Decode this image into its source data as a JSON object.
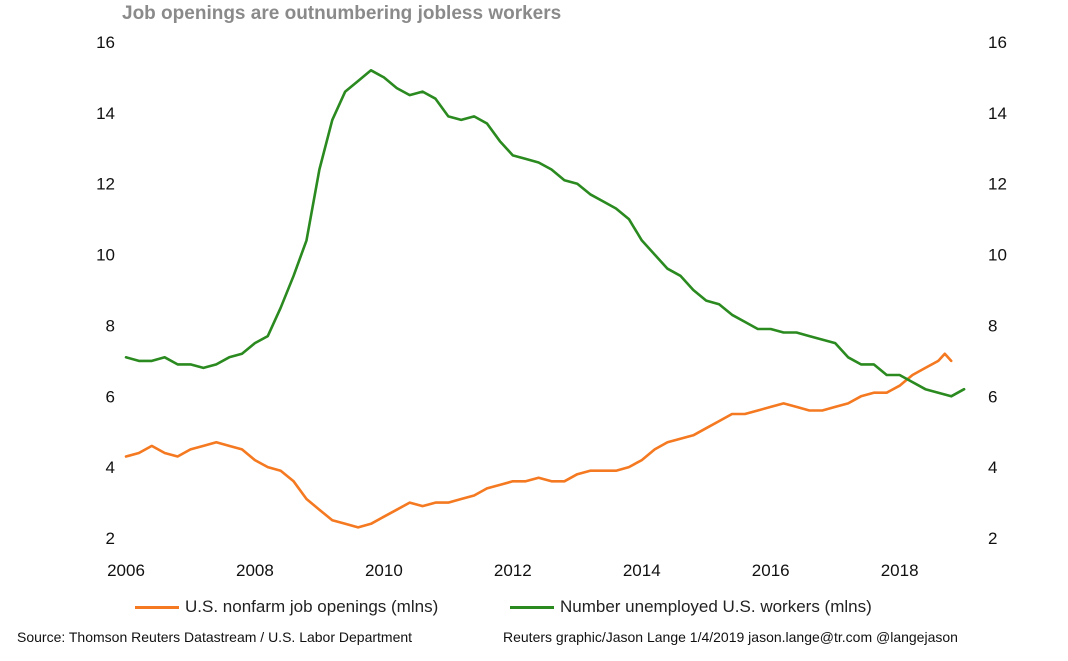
{
  "chart_data": {
    "type": "line",
    "title": "Job openings are outnumbering jobless workers",
    "xlabel": "",
    "ylabel": "",
    "x_ticks": [
      "2006",
      "2008",
      "2010",
      "2012",
      "2014",
      "2016",
      "2018"
    ],
    "y_ticks_left": [
      "2",
      "4",
      "6",
      "8",
      "10",
      "12",
      "14",
      "16"
    ],
    "y_ticks_right": [
      "2",
      "4",
      "6",
      "8",
      "10",
      "12",
      "14",
      "16"
    ],
    "xlim": [
      2006,
      2019.2
    ],
    "ylim": [
      2,
      16
    ],
    "grid": false,
    "legend_position": "bottom",
    "series": [
      {
        "name": "U.S. nonfarm job openings (mlns)",
        "color": "#f47920",
        "points": [
          [
            2006.0,
            4.3
          ],
          [
            2006.2,
            4.4
          ],
          [
            2006.4,
            4.6
          ],
          [
            2006.6,
            4.4
          ],
          [
            2006.8,
            4.3
          ],
          [
            2007.0,
            4.5
          ],
          [
            2007.2,
            4.6
          ],
          [
            2007.4,
            4.7
          ],
          [
            2007.6,
            4.6
          ],
          [
            2007.8,
            4.5
          ],
          [
            2008.0,
            4.2
          ],
          [
            2008.2,
            4.0
          ],
          [
            2008.4,
            3.9
          ],
          [
            2008.6,
            3.6
          ],
          [
            2008.8,
            3.1
          ],
          [
            2009.0,
            2.8
          ],
          [
            2009.2,
            2.5
          ],
          [
            2009.4,
            2.4
          ],
          [
            2009.6,
            2.3
          ],
          [
            2009.8,
            2.4
          ],
          [
            2010.0,
            2.6
          ],
          [
            2010.2,
            2.8
          ],
          [
            2010.4,
            3.0
          ],
          [
            2010.6,
            2.9
          ],
          [
            2010.8,
            3.0
          ],
          [
            2011.0,
            3.0
          ],
          [
            2011.2,
            3.1
          ],
          [
            2011.4,
            3.2
          ],
          [
            2011.6,
            3.4
          ],
          [
            2011.8,
            3.5
          ],
          [
            2012.0,
            3.6
          ],
          [
            2012.2,
            3.6
          ],
          [
            2012.4,
            3.7
          ],
          [
            2012.6,
            3.6
          ],
          [
            2012.8,
            3.6
          ],
          [
            2013.0,
            3.8
          ],
          [
            2013.2,
            3.9
          ],
          [
            2013.4,
            3.9
          ],
          [
            2013.6,
            3.9
          ],
          [
            2013.8,
            4.0
          ],
          [
            2014.0,
            4.2
          ],
          [
            2014.2,
            4.5
          ],
          [
            2014.4,
            4.7
          ],
          [
            2014.6,
            4.8
          ],
          [
            2014.8,
            4.9
          ],
          [
            2015.0,
            5.1
          ],
          [
            2015.2,
            5.3
          ],
          [
            2015.4,
            5.5
          ],
          [
            2015.6,
            5.5
          ],
          [
            2015.8,
            5.6
          ],
          [
            2016.0,
            5.7
          ],
          [
            2016.2,
            5.8
          ],
          [
            2016.4,
            5.7
          ],
          [
            2016.6,
            5.6
          ],
          [
            2016.8,
            5.6
          ],
          [
            2017.0,
            5.7
          ],
          [
            2017.2,
            5.8
          ],
          [
            2017.4,
            6.0
          ],
          [
            2017.6,
            6.1
          ],
          [
            2017.8,
            6.1
          ],
          [
            2018.0,
            6.3
          ],
          [
            2018.2,
            6.6
          ],
          [
            2018.4,
            6.8
          ],
          [
            2018.6,
            7.0
          ],
          [
            2018.7,
            7.2
          ],
          [
            2018.8,
            7.0
          ]
        ]
      },
      {
        "name": "Number unemployed U.S. workers (mlns)",
        "color": "#2a8a1f",
        "points": [
          [
            2006.0,
            7.1
          ],
          [
            2006.2,
            7.0
          ],
          [
            2006.4,
            7.0
          ],
          [
            2006.6,
            7.1
          ],
          [
            2006.8,
            6.9
          ],
          [
            2007.0,
            6.9
          ],
          [
            2007.2,
            6.8
          ],
          [
            2007.4,
            6.9
          ],
          [
            2007.6,
            7.1
          ],
          [
            2007.8,
            7.2
          ],
          [
            2008.0,
            7.5
          ],
          [
            2008.2,
            7.7
          ],
          [
            2008.4,
            8.5
          ],
          [
            2008.6,
            9.4
          ],
          [
            2008.8,
            10.4
          ],
          [
            2009.0,
            12.4
          ],
          [
            2009.2,
            13.8
          ],
          [
            2009.4,
            14.6
          ],
          [
            2009.6,
            14.9
          ],
          [
            2009.8,
            15.2
          ],
          [
            2010.0,
            15.0
          ],
          [
            2010.2,
            14.7
          ],
          [
            2010.4,
            14.5
          ],
          [
            2010.6,
            14.6
          ],
          [
            2010.8,
            14.4
          ],
          [
            2011.0,
            13.9
          ],
          [
            2011.2,
            13.8
          ],
          [
            2011.4,
            13.9
          ],
          [
            2011.6,
            13.7
          ],
          [
            2011.8,
            13.2
          ],
          [
            2012.0,
            12.8
          ],
          [
            2012.2,
            12.7
          ],
          [
            2012.4,
            12.6
          ],
          [
            2012.6,
            12.4
          ],
          [
            2012.8,
            12.1
          ],
          [
            2013.0,
            12.0
          ],
          [
            2013.2,
            11.7
          ],
          [
            2013.4,
            11.5
          ],
          [
            2013.6,
            11.3
          ],
          [
            2013.8,
            11.0
          ],
          [
            2014.0,
            10.4
          ],
          [
            2014.2,
            10.0
          ],
          [
            2014.4,
            9.6
          ],
          [
            2014.6,
            9.4
          ],
          [
            2014.8,
            9.0
          ],
          [
            2015.0,
            8.7
          ],
          [
            2015.2,
            8.6
          ],
          [
            2015.4,
            8.3
          ],
          [
            2015.6,
            8.1
          ],
          [
            2015.8,
            7.9
          ],
          [
            2016.0,
            7.9
          ],
          [
            2016.2,
            7.8
          ],
          [
            2016.4,
            7.8
          ],
          [
            2016.6,
            7.7
          ],
          [
            2016.8,
            7.6
          ],
          [
            2017.0,
            7.5
          ],
          [
            2017.2,
            7.1
          ],
          [
            2017.4,
            6.9
          ],
          [
            2017.6,
            6.9
          ],
          [
            2017.8,
            6.6
          ],
          [
            2018.0,
            6.6
          ],
          [
            2018.2,
            6.4
          ],
          [
            2018.4,
            6.2
          ],
          [
            2018.6,
            6.1
          ],
          [
            2018.8,
            6.0
          ],
          [
            2019.0,
            6.2
          ]
        ]
      }
    ]
  },
  "footer": {
    "source": "Source: Thomson Reuters Datastream / U.S. Labor Department",
    "credit": "Reuters graphic/Jason Lange 1/4/2019 jason.lange@tr.com @langejason"
  }
}
